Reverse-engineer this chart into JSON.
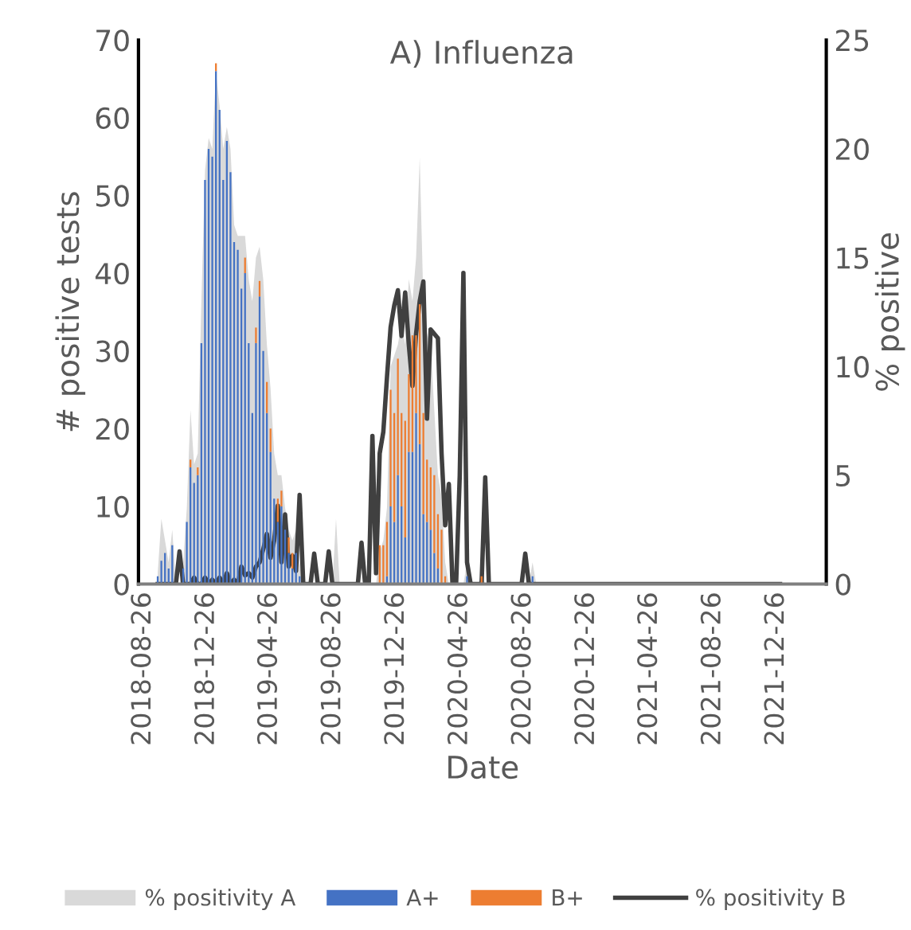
{
  "chart_data": {
    "type": "bar",
    "title": "A) Influenza",
    "xlabel": "Date",
    "ylabel": "# positive tests",
    "y2label": "% positive",
    "stacked": true,
    "legend": "bottom",
    "grid": false,
    "x": [
      "2018-09-23",
      "2018-09-30",
      "2018-10-07",
      "2018-10-14",
      "2018-10-21",
      "2018-10-28",
      "2018-11-04",
      "2018-11-11",
      "2018-11-18",
      "2018-11-25",
      "2018-12-02",
      "2018-12-09",
      "2018-12-16",
      "2018-12-23",
      "2018-12-30",
      "2019-01-06",
      "2019-01-13",
      "2019-01-20",
      "2019-01-27",
      "2019-02-03",
      "2019-02-10",
      "2019-02-17",
      "2019-02-24",
      "2019-03-03",
      "2019-03-10",
      "2019-03-17",
      "2019-03-24",
      "2019-03-31",
      "2019-04-07",
      "2019-04-14",
      "2019-04-21",
      "2019-04-28",
      "2019-05-05",
      "2019-05-12",
      "2019-05-19",
      "2019-05-26",
      "2019-06-02",
      "2019-06-09",
      "2019-06-16",
      "2019-06-23",
      "2019-06-30",
      "2019-07-07",
      "2019-07-14",
      "2019-07-21",
      "2019-07-28",
      "2019-08-04",
      "2019-08-11",
      "2019-08-18",
      "2019-08-25",
      "2019-09-01",
      "2019-09-08",
      "2019-09-15",
      "2019-09-22",
      "2019-09-29",
      "2019-10-06",
      "2019-10-13",
      "2019-10-20",
      "2019-10-27",
      "2019-11-03",
      "2019-11-10",
      "2019-11-17",
      "2019-11-24",
      "2019-12-01",
      "2019-12-08",
      "2019-12-15",
      "2019-12-22",
      "2019-12-29",
      "2020-01-05",
      "2020-01-12",
      "2020-01-19",
      "2020-01-26",
      "2020-02-02",
      "2020-02-09",
      "2020-02-16",
      "2020-02-23",
      "2020-03-01",
      "2020-03-08",
      "2020-03-15",
      "2020-03-22",
      "2020-03-29",
      "2020-04-05",
      "2020-04-12",
      "2020-04-19",
      "2020-04-26",
      "2020-05-03",
      "2020-05-10",
      "2020-05-17",
      "2020-05-24",
      "2020-05-31",
      "2020-06-07",
      "2020-06-14",
      "2020-06-21",
      "2020-06-28",
      "2020-07-05",
      "2020-07-12",
      "2020-07-19",
      "2020-07-26",
      "2020-08-02",
      "2020-08-09",
      "2020-08-16",
      "2020-08-23",
      "2020-08-30",
      "2020-09-06",
      "2020-09-13",
      "2020-09-20"
    ],
    "series": [
      {
        "name": "% positivity A",
        "type": "area",
        "axis": "y2",
        "color": "#d9d9d9",
        "values": [
          0.5,
          3.0,
          2.0,
          1.0,
          2.5,
          0,
          0,
          1.0,
          3.5,
          8.0,
          5.5,
          6.0,
          13,
          19,
          20.5,
          20,
          23.5,
          22,
          20,
          21,
          20,
          16.5,
          16,
          16,
          16,
          14,
          13,
          15,
          15.5,
          14,
          11,
          9,
          6,
          5,
          5,
          3.5,
          2.5,
          2,
          2.5,
          1,
          0,
          0,
          0,
          0,
          0,
          0,
          0,
          0,
          0,
          3.0,
          0,
          0,
          0,
          0,
          0,
          0,
          0,
          0,
          0,
          0,
          0,
          1.5,
          2,
          3.5,
          10,
          10.5,
          11,
          12,
          11,
          14,
          13,
          15,
          19.6,
          13,
          11.5,
          11,
          8,
          5,
          4,
          1,
          0,
          0,
          0,
          0,
          0,
          1,
          0,
          0,
          0,
          0.5,
          0,
          0,
          0,
          0,
          0,
          0,
          0,
          0,
          0,
          0,
          0,
          0,
          0,
          1.0,
          0
        ]
      },
      {
        "name": "A+",
        "color": "#4472c4",
        "values": [
          1,
          3,
          4,
          2,
          5,
          0,
          0,
          2,
          8,
          15,
          13,
          14,
          31,
          52,
          56,
          55,
          66,
          61,
          52,
          57,
          53,
          44,
          43,
          38,
          40,
          31,
          22,
          31,
          37,
          30,
          22,
          17,
          11,
          8,
          10,
          7,
          4,
          2,
          4,
          1,
          0,
          0,
          0,
          0,
          0,
          0,
          0,
          0,
          0,
          0,
          0,
          0,
          0,
          0,
          0,
          0,
          0,
          0,
          0,
          0,
          0,
          0,
          0,
          1,
          10,
          8,
          14,
          10,
          6,
          17,
          17,
          22,
          18,
          9,
          8,
          7,
          4,
          2,
          0,
          0,
          0,
          0,
          0,
          0,
          0,
          1,
          0,
          0,
          0,
          0,
          0,
          0,
          0,
          0,
          0,
          0,
          0,
          0,
          0,
          0,
          0,
          0,
          0,
          1,
          0
        ]
      },
      {
        "name": "B+",
        "color": "#ed7d31",
        "values": [
          0,
          0,
          0,
          0,
          0,
          0,
          0,
          0,
          0,
          1,
          0,
          1,
          0,
          0,
          0,
          0,
          1,
          0,
          0,
          0,
          0,
          0,
          0,
          0,
          2,
          0,
          0,
          2,
          2,
          0,
          4,
          3,
          0,
          3,
          2,
          0,
          2,
          2,
          0,
          0,
          0,
          0,
          0,
          0,
          0,
          0,
          0,
          0,
          0,
          0,
          0,
          0,
          0,
          0,
          0,
          0,
          0,
          0,
          0,
          0,
          0,
          5,
          5,
          7,
          15,
          14,
          15,
          12,
          15,
          10,
          15,
          10,
          18,
          13,
          8,
          8,
          10,
          7,
          7,
          1,
          0,
          0,
          0,
          0,
          0,
          0,
          0,
          0,
          0,
          1,
          0,
          0,
          0,
          0,
          0,
          0,
          0,
          0,
          0,
          0,
          0,
          0,
          0,
          0,
          0
        ]
      },
      {
        "name": "% positivity B",
        "type": "line",
        "axis": "y2",
        "color": "#404040",
        "x": [
          "2018-09-23",
          "2018-09-30",
          "2018-10-07",
          "2018-10-14",
          "2018-10-21",
          "2018-10-28",
          "2018-11-04",
          "2018-11-11",
          "2018-11-18",
          "2018-11-25",
          "2018-12-02",
          "2018-12-09",
          "2018-12-16",
          "2018-12-23",
          "2018-12-30",
          "2019-01-06",
          "2019-01-13",
          "2019-01-20",
          "2019-01-27",
          "2019-02-03",
          "2019-02-10",
          "2019-02-17",
          "2019-02-24",
          "2019-03-03",
          "2019-03-10",
          "2019-03-17",
          "2019-03-24",
          "2019-03-31",
          "2019-04-07",
          "2019-04-14",
          "2019-04-21",
          "2019-04-28",
          "2019-05-05",
          "2019-05-12",
          "2019-05-19",
          "2019-05-26",
          "2019-06-02",
          "2019-06-09",
          "2019-06-16",
          "2019-06-23",
          "2019-06-30",
          "2019-07-07",
          "2019-07-14",
          "2019-07-21",
          "2019-07-28",
          "2019-08-04",
          "2019-08-11",
          "2019-08-18",
          "2019-08-25",
          "2019-09-01",
          "2019-09-08",
          "2019-09-15",
          "2019-09-22",
          "2019-09-29",
          "2019-10-06",
          "2019-10-13",
          "2019-10-20",
          "2019-10-27",
          "2019-11-03",
          "2019-11-10",
          "2019-11-17",
          "2019-11-24",
          "2019-12-01",
          "2019-12-08",
          "2019-12-15",
          "2019-12-22",
          "2019-12-29",
          "2020-01-05",
          "2020-01-12",
          "2020-01-19",
          "2020-01-26",
          "2020-02-02",
          "2020-02-09",
          "2020-02-16",
          "2020-02-23",
          "2020-03-01",
          "2020-03-08",
          "2020-03-15",
          "2020-03-22",
          "2020-03-29",
          "2020-04-05",
          "2020-04-12",
          "2020-04-19",
          "2020-04-26",
          "2020-05-03",
          "2020-05-10",
          "2020-05-17",
          "2020-05-24",
          "2020-05-31",
          "2020-06-07",
          "2020-06-14",
          "2020-06-21",
          "2020-06-28",
          "2020-07-05",
          "2020-07-12",
          "2020-07-19",
          "2020-07-26",
          "2020-08-02",
          "2020-08-09",
          "2020-08-16",
          "2020-08-23",
          "2020-08-30",
          "2020-09-06",
          "2020-09-13",
          "2020-09-20",
          "2022-01-02"
        ],
        "values": [
          0,
          0,
          0,
          0,
          0,
          0,
          1.5,
          0,
          0,
          0,
          0.3,
          0,
          0,
          0.3,
          0,
          0.2,
          0,
          0.3,
          0,
          0.5,
          0,
          0.2,
          0,
          0.8,
          0.4,
          0.5,
          0.3,
          0.8,
          1.0,
          1.6,
          2.3,
          1.2,
          2.0,
          3.6,
          1.0,
          3.2,
          0.8,
          1.3,
          0.6,
          4.1,
          0,
          0,
          0,
          1.4,
          0,
          0,
          0,
          1.5,
          0,
          0,
          0,
          0,
          0,
          0,
          0,
          0,
          1.9,
          0,
          0,
          6.8,
          0.5,
          6.0,
          7.0,
          9.5,
          11.8,
          12.8,
          13.5,
          11.4,
          13.4,
          11.0,
          9.1,
          11.5,
          13.0,
          13.9,
          7.6,
          11.7,
          11.5,
          11.3,
          6.0,
          2.7,
          4.6,
          0,
          0,
          5.0,
          14.3,
          1.0,
          0,
          0,
          0,
          0,
          4.9,
          0,
          0,
          0,
          0,
          0,
          0,
          0,
          0,
          0,
          0,
          1.4,
          0,
          0,
          0,
          0
        ]
      }
    ],
    "xlim": [
      "2018-08-17",
      "2022-04-01"
    ],
    "xticks": [
      "2018-08-26",
      "2018-12-26",
      "2019-04-26",
      "2019-08-26",
      "2019-12-26",
      "2020-04-26",
      "2020-08-26",
      "2020-12-26",
      "2021-04-26",
      "2021-08-26",
      "2021-12-26"
    ],
    "ylim": [
      0,
      70
    ],
    "yticks": [
      0,
      10,
      20,
      30,
      40,
      50,
      60,
      70
    ],
    "y2lim": [
      0,
      25
    ],
    "y2ticks": [
      0,
      5,
      10,
      15,
      20,
      25
    ]
  }
}
